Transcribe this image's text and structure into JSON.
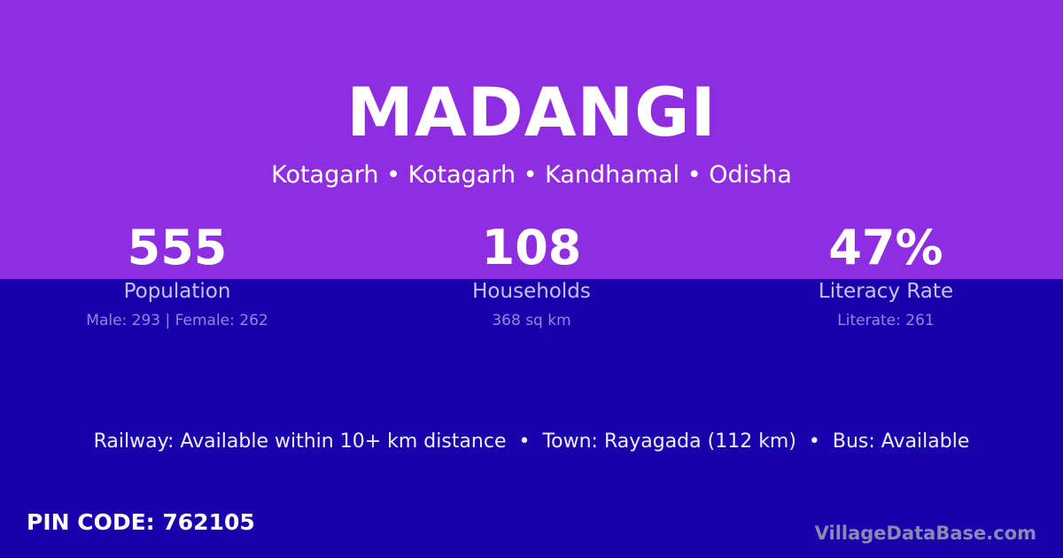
{
  "title": "MADANGI",
  "subtitle": "Kotagarh • Kotagarh • Kandhamal • Odisha",
  "stats": [
    {
      "value": "555",
      "label": "Population",
      "detail": "Male: 293 | Female: 262"
    },
    {
      "value": "108",
      "label": "Households",
      "detail": "368 sq km"
    },
    {
      "value": "47%",
      "label": "Literacy Rate",
      "detail": "Literate: 261"
    }
  ],
  "info": "Railway: Available within 10+ km distance  •  Town: Rayagada (112 km)  •  Bus: Available",
  "pin": "PIN CODE: 762105",
  "brand": "VillageDataBase.com",
  "colors": {
    "top": "#8f2ee0",
    "bottom": "#1a00ab"
  }
}
